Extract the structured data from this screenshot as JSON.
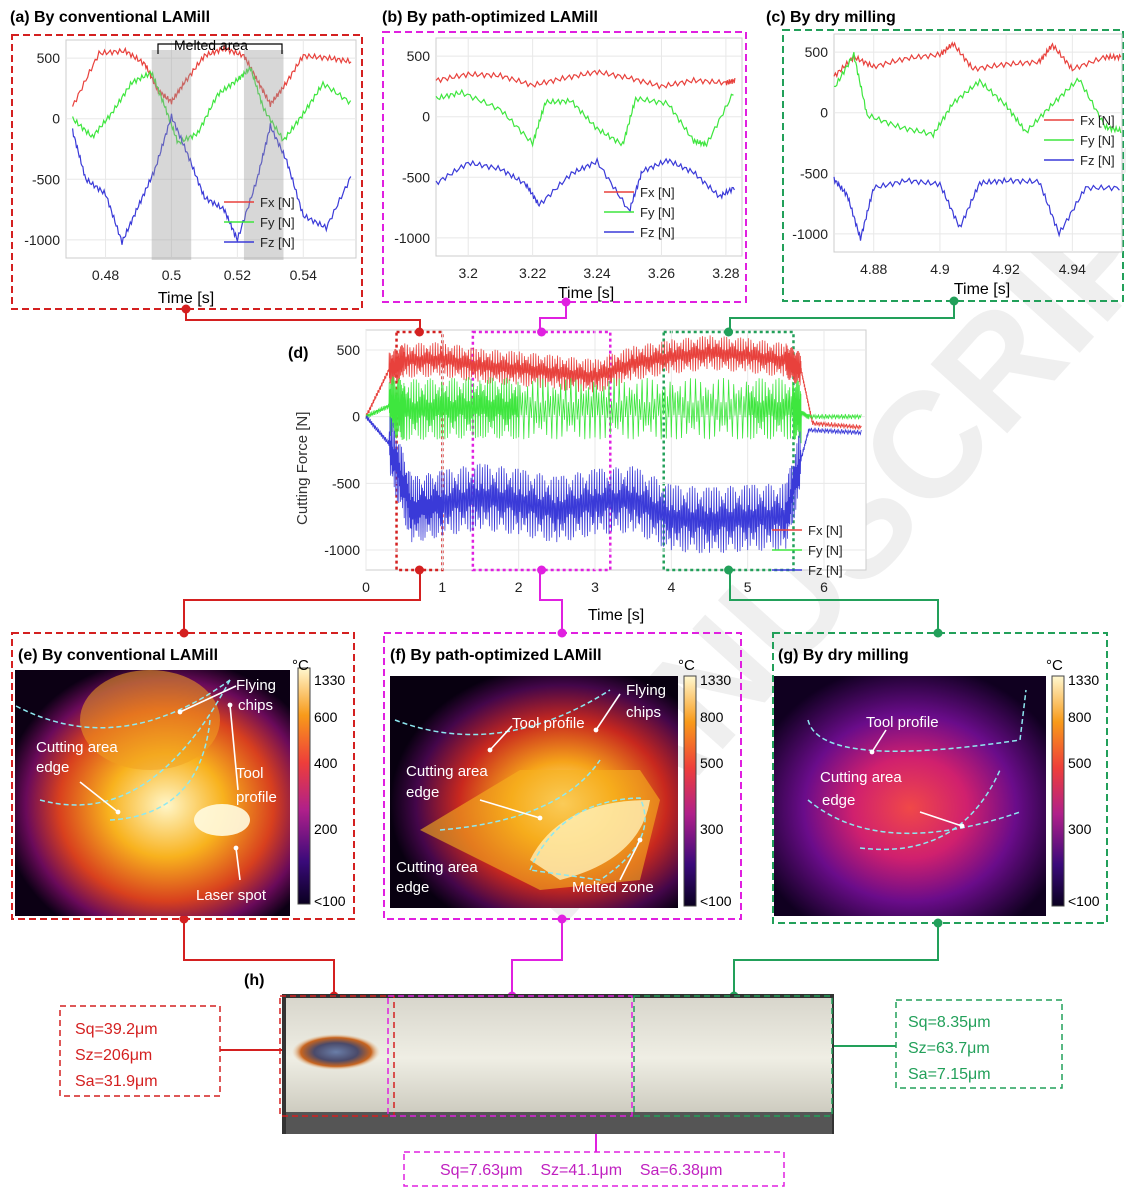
{
  "panels_top": [
    {
      "id": "a",
      "title": "(a) By conventional LAMill",
      "frame_color": "#d42020",
      "xlabel": "Time [s]",
      "xticks": [
        "0.48",
        "0.5",
        "0.52",
        "0.54"
      ],
      "yticks": [
        "500",
        "0",
        "-500",
        "-1000"
      ],
      "annotation": "Melted area",
      "legend": [
        "Fx [N]",
        "Fy [N]",
        "Fz [N]"
      ]
    },
    {
      "id": "b",
      "title": "(b) By path-optimized LAMill",
      "frame_color": "#e020e0",
      "xlabel": "Time [s]",
      "xticks": [
        "3.2",
        "3.22",
        "3.24",
        "3.26",
        "3.28"
      ],
      "yticks": [
        "500",
        "0",
        "-500",
        "-1000"
      ],
      "legend": [
        "Fx [N]",
        "Fy [N]",
        "Fz [N]"
      ]
    },
    {
      "id": "c",
      "title": "(c) By dry milling",
      "frame_color": "#22a05a",
      "xlabel": "Time [s]",
      "xticks": [
        "4.88",
        "4.9",
        "4.92",
        "4.94"
      ],
      "yticks": [
        "500",
        "0",
        "-500",
        "-1000"
      ],
      "legend": [
        "Fx [N]",
        "Fy [N]",
        "Fz [N]"
      ]
    }
  ],
  "panel_d": {
    "label": "(d)",
    "ylabel": "Cutting Force [N]",
    "xlabel": "Time [s]",
    "xticks": [
      "0",
      "1",
      "2",
      "3",
      "4",
      "5",
      "6"
    ],
    "yticks": [
      "500",
      "0",
      "-500",
      "-1000"
    ],
    "legend": [
      "Fx [N]",
      "Fy [N]",
      "Fz [N]"
    ]
  },
  "thermal_panels": [
    {
      "id": "e",
      "title": "(e) By conventional LAMill",
      "frame_color": "#d42020",
      "unit": "°C",
      "scale_ticks": [
        "1330",
        "600",
        "400",
        "200",
        "<100"
      ],
      "labels": [
        "Flying",
        "chips",
        "Cutting area",
        "edge",
        "Tool",
        "profile",
        "Laser spot"
      ]
    },
    {
      "id": "f",
      "title": "(f) By path-optimized LAMill",
      "frame_color": "#e020e0",
      "unit": "°C",
      "scale_ticks": [
        "1330",
        "800",
        "500",
        "300",
        "<100"
      ],
      "labels": [
        "Flying",
        "chips",
        "Tool profile",
        "Cutting area",
        "edge",
        "Cutting area",
        "edge",
        "Melted zone"
      ]
    },
    {
      "id": "g",
      "title": "(g) By dry milling",
      "frame_color": "#22a05a",
      "unit": "°C",
      "scale_ticks": [
        "1330",
        "800",
        "500",
        "300",
        "<100"
      ],
      "labels": [
        "Tool profile",
        "Cutting area",
        "edge"
      ]
    }
  ],
  "panel_h": {
    "label": "(h)",
    "boxes": [
      {
        "color": "#d42020",
        "lines": [
          "Sq=39.2μm",
          "Sz=206μm",
          "Sa=31.9μm"
        ]
      },
      {
        "color": "#22a05a",
        "lines": [
          "Sq=8.35μm",
          "Sz=63.7μm",
          "Sa=7.15μm"
        ]
      },
      {
        "color": "#e020e0",
        "lines": [
          "Sq=7.63μm    Sz=41.1μm    Sa=6.38μm"
        ]
      }
    ]
  },
  "colors": {
    "fx": "#e8413c",
    "fy": "#3ee63e",
    "fz": "#3a3ad8",
    "red": "#d42020",
    "magenta": "#e020e0",
    "green": "#22a05a"
  },
  "chart_data": [
    {
      "type": "line",
      "title": "(a) By conventional LAMill",
      "xlabel": "Time [s]",
      "ylabel": "",
      "xlim": [
        0.468,
        0.556
      ],
      "ylim": [
        -1150,
        650
      ],
      "series": [
        {
          "name": "Fx [N]",
          "x": [
            0.47,
            0.478,
            0.486,
            0.492,
            0.496,
            0.5,
            0.504,
            0.51,
            0.516,
            0.522,
            0.526,
            0.53,
            0.534,
            0.54,
            0.548,
            0.555
          ],
          "y": [
            100,
            540,
            560,
            450,
            230,
            140,
            300,
            520,
            580,
            520,
            320,
            120,
            260,
            520,
            500,
            470
          ]
        },
        {
          "name": "Fy [N]",
          "x": [
            0.47,
            0.476,
            0.482,
            0.488,
            0.494,
            0.498,
            0.502,
            0.508,
            0.514,
            0.52,
            0.524,
            0.528,
            0.534,
            0.54,
            0.546,
            0.555
          ],
          "y": [
            0,
            -150,
            50,
            300,
            380,
            100,
            -200,
            -120,
            200,
            320,
            420,
            80,
            -180,
            40,
            290,
            120
          ]
        },
        {
          "name": "Fz [N]",
          "x": [
            0.47,
            0.474,
            0.48,
            0.485,
            0.49,
            0.495,
            0.5,
            0.505,
            0.51,
            0.516,
            0.52,
            0.526,
            0.53,
            0.535,
            0.54,
            0.547,
            0.555
          ],
          "y": [
            -100,
            -500,
            -620,
            -1020,
            -720,
            -420,
            20,
            -300,
            -650,
            -750,
            -1000,
            -500,
            -60,
            -350,
            -800,
            -900,
            -450
          ]
        }
      ]
    },
    {
      "type": "line",
      "title": "(b) By path-optimized LAMill",
      "xlabel": "Time [s]",
      "ylabel": "",
      "xlim": [
        3.19,
        3.285
      ],
      "ylim": [
        -1150,
        650
      ],
      "series": [
        {
          "name": "Fx [N]",
          "x": [
            3.19,
            3.2,
            3.21,
            3.22,
            3.23,
            3.24,
            3.25,
            3.26,
            3.27,
            3.28,
            3.283
          ],
          "y": [
            300,
            350,
            340,
            260,
            320,
            370,
            320,
            250,
            300,
            280,
            300
          ]
        },
        {
          "name": "Fy [N]",
          "x": [
            3.19,
            3.198,
            3.21,
            3.22,
            3.224,
            3.232,
            3.24,
            3.248,
            3.252,
            3.262,
            3.27,
            3.274,
            3.283
          ],
          "y": [
            150,
            200,
            60,
            -220,
            120,
            130,
            -100,
            -230,
            150,
            110,
            -200,
            -230,
            230
          ]
        },
        {
          "name": "Fz [N]",
          "x": [
            3.19,
            3.2,
            3.21,
            3.218,
            3.222,
            3.232,
            3.24,
            3.25,
            3.254,
            3.262,
            3.27,
            3.278,
            3.283
          ],
          "y": [
            -550,
            -380,
            -430,
            -560,
            -730,
            -470,
            -370,
            -780,
            -450,
            -360,
            -460,
            -660,
            -580
          ]
        }
      ]
    },
    {
      "type": "line",
      "title": "(c) By dry milling",
      "xlabel": "Time [s]",
      "ylabel": "",
      "xlim": [
        4.868,
        4.955
      ],
      "ylim": [
        -1150,
        650
      ],
      "series": [
        {
          "name": "Fx [N]",
          "x": [
            4.868,
            4.874,
            4.88,
            4.89,
            4.9,
            4.904,
            4.91,
            4.92,
            4.93,
            4.934,
            4.94,
            4.95,
            4.955
          ],
          "y": [
            300,
            460,
            380,
            450,
            480,
            570,
            360,
            400,
            420,
            560,
            360,
            460,
            460
          ]
        },
        {
          "name": "Fy [N]",
          "x": [
            4.868,
            4.874,
            4.878,
            4.888,
            4.898,
            4.904,
            4.912,
            4.92,
            4.926,
            4.934,
            4.942,
            4.95,
            4.955
          ],
          "y": [
            200,
            480,
            -20,
            -120,
            -180,
            80,
            260,
            60,
            -160,
            70,
            280,
            -120,
            -150
          ]
        },
        {
          "name": "Fz [N]",
          "x": [
            4.868,
            4.872,
            4.876,
            4.88,
            4.89,
            4.9,
            4.906,
            4.912,
            4.92,
            4.93,
            4.936,
            4.944,
            4.955
          ],
          "y": [
            -550,
            -680,
            -1040,
            -620,
            -560,
            -590,
            -950,
            -580,
            -560,
            -570,
            -1000,
            -620,
            -620
          ]
        }
      ]
    },
    {
      "type": "line",
      "title": "",
      "xlabel": "Time [s]",
      "ylabel": "Cutting Force [N]",
      "xlim": [
        0,
        6.55
      ],
      "ylim": [
        -1150,
        650
      ],
      "series": [
        {
          "name": "Fx [N]",
          "x": [
            0,
            0.3,
            0.5,
            1.0,
            1.5,
            2.0,
            2.5,
            3.0,
            3.5,
            4.0,
            4.5,
            5.0,
            5.5,
            5.7,
            5.85,
            6.5
          ],
          "y": [
            0,
            350,
            420,
            430,
            380,
            360,
            330,
            300,
            400,
            450,
            480,
            460,
            420,
            350,
            -50,
            -80
          ]
        },
        {
          "name": "Fy [N]",
          "x": [
            0,
            0.3,
            0.5,
            1.0,
            1.5,
            2.0,
            3.0,
            4.0,
            5.0,
            5.6,
            5.8,
            6.5
          ],
          "y": [
            0,
            80,
            50,
            60,
            70,
            60,
            60,
            60,
            60,
            60,
            0,
            0
          ]
        },
        {
          "name": "Fz [N]",
          "x": [
            0,
            0.3,
            0.6,
            1.0,
            1.5,
            2.0,
            2.5,
            3.0,
            3.5,
            4.0,
            4.5,
            5.0,
            5.5,
            5.8,
            6.5
          ],
          "y": [
            0,
            -200,
            -700,
            -650,
            -600,
            -640,
            -700,
            -640,
            -620,
            -760,
            -780,
            -760,
            -750,
            -100,
            -120
          ]
        }
      ]
    }
  ]
}
